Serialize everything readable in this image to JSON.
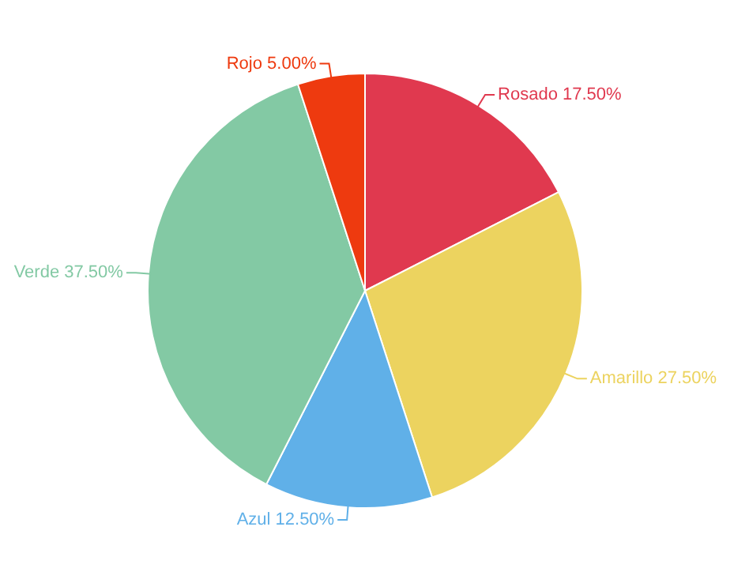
{
  "chart_data": {
    "type": "pie",
    "categories": [
      "Rosado",
      "Amarillo",
      "Azul",
      "Verde",
      "Rojo"
    ],
    "values": [
      17.5,
      27.5,
      12.5,
      37.5,
      5
    ],
    "colors": [
      "#e0394f",
      "#ecd35f",
      "#60b0e8",
      "#83c9a4",
      "#ee3a0f"
    ],
    "value_labels": [
      "17.50%",
      "27.50%",
      "12.50%",
      "37.50%",
      "5.00%"
    ],
    "legend": false
  }
}
